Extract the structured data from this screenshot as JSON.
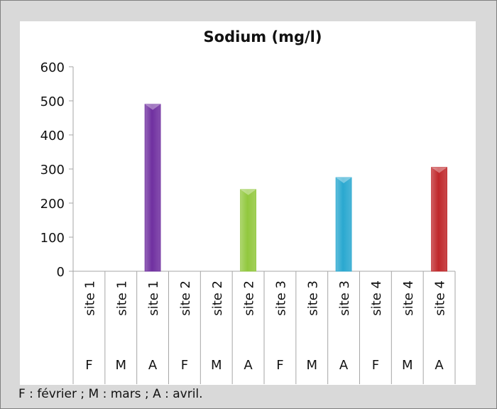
{
  "chart_data": {
    "type": "bar",
    "title": "Sodium (mg/l)",
    "categories": [
      {
        "site": "site 1",
        "month": "F"
      },
      {
        "site": "site 1",
        "month": "M"
      },
      {
        "site": "site 1",
        "month": "A"
      },
      {
        "site": "site 2",
        "month": "F"
      },
      {
        "site": "site 2",
        "month": "M"
      },
      {
        "site": "site 2",
        "month": "A"
      },
      {
        "site": "site 3",
        "month": "F"
      },
      {
        "site": "site 3",
        "month": "M"
      },
      {
        "site": "site 3",
        "month": "A"
      },
      {
        "site": "site 4",
        "month": "F"
      },
      {
        "site": "site 4",
        "month": "M"
      },
      {
        "site": "site 4",
        "month": "A"
      }
    ],
    "values": [
      0,
      0,
      490,
      0,
      0,
      240,
      0,
      0,
      275,
      0,
      0,
      305
    ],
    "bar_colors": [
      "#7030a0",
      "#7030a0",
      "#7030a0",
      "#92c83e",
      "#92c83e",
      "#92c83e",
      "#2aa8d0",
      "#2aa8d0",
      "#2aa8d0",
      "#c0282b",
      "#c0282b",
      "#c0282b"
    ],
    "ylim": [
      0,
      600
    ],
    "yticks": [
      0,
      100,
      200,
      300,
      400,
      500,
      600
    ],
    "grid": false,
    "legend": "none"
  },
  "footnote": "F : février ; M : mars ; A : avril."
}
